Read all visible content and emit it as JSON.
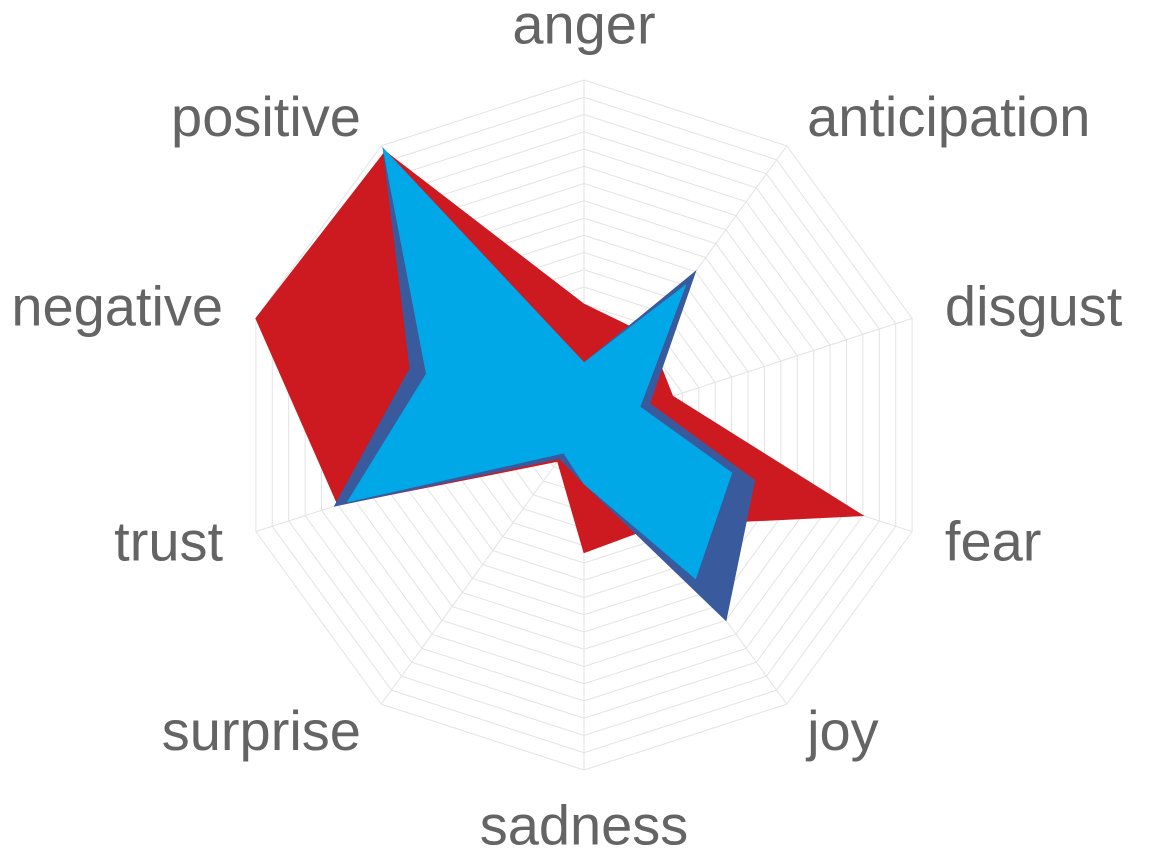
{
  "chart_data": {
    "type": "radar",
    "categories": [
      "anger",
      "anticipation",
      "disgust",
      "fear",
      "joy",
      "sadness",
      "surprise",
      "trust",
      "negative",
      "positive"
    ],
    "rmax": 1,
    "grid_levels": 20,
    "grid": true,
    "legend": "none",
    "series": [
      {
        "color": "#cc1a20",
        "values": [
          0.35,
          0.32,
          0.27,
          0.85,
          0.36,
          0.37,
          0.13,
          0.75,
          1.0,
          0.98
        ]
      },
      {
        "color": "#3a5a9e",
        "values": [
          0.18,
          0.55,
          0.2,
          0.52,
          0.7,
          0.17,
          0.12,
          0.76,
          0.53,
          0.99
        ]
      },
      {
        "color": "#00a8e8",
        "values": [
          0.18,
          0.5,
          0.17,
          0.45,
          0.55,
          0.17,
          0.1,
          0.72,
          0.48,
          0.99
        ]
      }
    ]
  }
}
